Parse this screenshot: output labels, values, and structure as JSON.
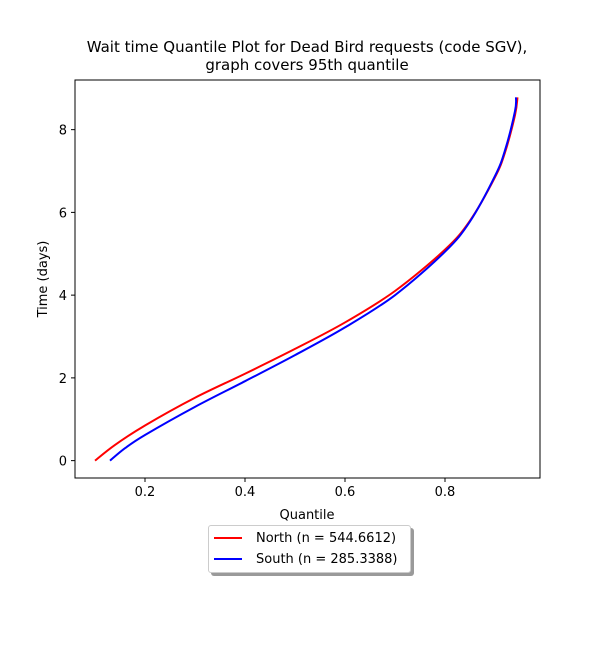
{
  "chart_data": {
    "type": "line",
    "title": "Wait time Quantile Plot for Dead Bird  requests (code SGV),\ngraph covers 95th quantile",
    "xlabel": "Quantile",
    "ylabel": "Time (days)",
    "xlim": [
      0.06,
      0.99
    ],
    "ylim": [
      -0.42,
      9.2
    ],
    "xticks": [
      0.2,
      0.4,
      0.6,
      0.8
    ],
    "xtick_labels": [
      "0.2",
      "0.4",
      "0.6",
      "0.8"
    ],
    "yticks": [
      0,
      2,
      4,
      6,
      8
    ],
    "ytick_labels": [
      "0",
      "2",
      "4",
      "6",
      "8"
    ],
    "grid": false,
    "legend_position": "below-center",
    "series": [
      {
        "name": "North (n = 544.6612)",
        "color": "#ff0000",
        "x": [
          0.1,
          0.14,
          0.2,
          0.3,
          0.4,
          0.5,
          0.6,
          0.7,
          0.8,
          0.85,
          0.9,
          0.92,
          0.94,
          0.945
        ],
        "y": [
          0.0,
          0.38,
          0.85,
          1.52,
          2.1,
          2.7,
          3.34,
          4.1,
          5.1,
          5.8,
          6.85,
          7.45,
          8.35,
          8.78
        ]
      },
      {
        "name": "South (n = 285.3388)",
        "color": "#0000ff",
        "x": [
          0.13,
          0.16,
          0.2,
          0.3,
          0.4,
          0.5,
          0.6,
          0.7,
          0.8,
          0.85,
          0.9,
          0.92,
          0.94,
          0.942
        ],
        "y": [
          0.0,
          0.3,
          0.62,
          1.3,
          1.92,
          2.55,
          3.22,
          4.0,
          5.05,
          5.78,
          6.88,
          7.5,
          8.45,
          8.78
        ]
      }
    ]
  }
}
